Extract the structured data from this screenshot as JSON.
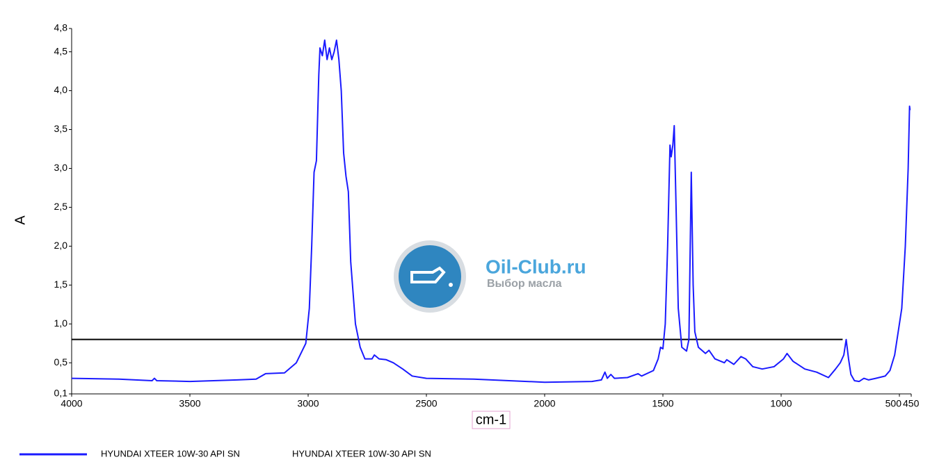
{
  "chart_data": {
    "type": "line",
    "xlabel": "cm-1",
    "ylabel": "A",
    "xlim": [
      4000,
      450
    ],
    "ylim": [
      0.1,
      4.8
    ],
    "xticks": [
      4000,
      3500,
      3000,
      2500,
      2000,
      1500,
      1000,
      500,
      450
    ],
    "yticks": [
      {
        "value": 0.1,
        "label": "0,1"
      },
      {
        "value": 0.5,
        "label": "0,5"
      },
      {
        "value": 1.0,
        "label": "1,0"
      },
      {
        "value": 1.5,
        "label": "1,5"
      },
      {
        "value": 2.0,
        "label": "2,0"
      },
      {
        "value": 2.5,
        "label": "2,5"
      },
      {
        "value": 3.0,
        "label": "3,0"
      },
      {
        "value": 3.5,
        "label": "3,5"
      },
      {
        "value": 4.0,
        "label": "4,0"
      },
      {
        "value": 4.5,
        "label": "4,5"
      },
      {
        "value": 4.8,
        "label": "4,8"
      }
    ],
    "reference_line": {
      "value": 0.8,
      "x": [
        4000,
        740
      ],
      "color": "#000000"
    },
    "watermark": {
      "title": "Oil-Club.ru",
      "subtitle": "Выбор масла"
    },
    "series": [
      {
        "name": "HYUNDAI XTEER 10W-30 API SN",
        "color": "#1a1aff",
        "x": [
          4000,
          3800,
          3660,
          3650,
          3640,
          3500,
          3300,
          3220,
          3180,
          3100,
          3050,
          3010,
          2995,
          2985,
          2975,
          2965,
          2955,
          2950,
          2940,
          2930,
          2920,
          2910,
          2900,
          2890,
          2880,
          2870,
          2860,
          2850,
          2840,
          2830,
          2820,
          2800,
          2780,
          2760,
          2730,
          2720,
          2700,
          2670,
          2640,
          2600,
          2560,
          2500,
          2300,
          2000,
          1800,
          1760,
          1745,
          1735,
          1720,
          1705,
          1650,
          1605,
          1590,
          1540,
          1520,
          1510,
          1500,
          1490,
          1480,
          1470,
          1465,
          1458,
          1452,
          1445,
          1435,
          1420,
          1400,
          1390,
          1380,
          1372,
          1365,
          1350,
          1320,
          1305,
          1280,
          1240,
          1230,
          1200,
          1170,
          1150,
          1120,
          1080,
          1030,
          990,
          975,
          950,
          900,
          850,
          800,
          770,
          750,
          735,
          725,
          715,
          705,
          690,
          670,
          650,
          630,
          600,
          560,
          540,
          520,
          505,
          490,
          475,
          463,
          457,
          455
        ],
        "values": [
          0.3,
          0.29,
          0.27,
          0.3,
          0.27,
          0.26,
          0.28,
          0.29,
          0.36,
          0.37,
          0.5,
          0.75,
          1.2,
          2.0,
          2.95,
          3.1,
          4.2,
          4.55,
          4.45,
          4.65,
          4.4,
          4.55,
          4.4,
          4.5,
          4.65,
          4.4,
          4.0,
          3.2,
          2.9,
          2.7,
          1.8,
          1.0,
          0.7,
          0.55,
          0.55,
          0.6,
          0.55,
          0.54,
          0.5,
          0.42,
          0.33,
          0.3,
          0.29,
          0.25,
          0.26,
          0.28,
          0.38,
          0.3,
          0.35,
          0.3,
          0.31,
          0.36,
          0.33,
          0.4,
          0.55,
          0.7,
          0.68,
          1.0,
          2.0,
          3.3,
          3.15,
          3.3,
          3.55,
          2.6,
          1.2,
          0.7,
          0.65,
          0.8,
          2.95,
          1.5,
          0.9,
          0.7,
          0.62,
          0.66,
          0.55,
          0.5,
          0.54,
          0.48,
          0.58,
          0.55,
          0.45,
          0.42,
          0.45,
          0.55,
          0.62,
          0.52,
          0.42,
          0.38,
          0.31,
          0.42,
          0.5,
          0.6,
          0.8,
          0.55,
          0.35,
          0.27,
          0.26,
          0.3,
          0.28,
          0.3,
          0.33,
          0.4,
          0.6,
          0.9,
          1.2,
          2.0,
          3.0,
          3.8,
          3.75
        ]
      }
    ]
  }
}
